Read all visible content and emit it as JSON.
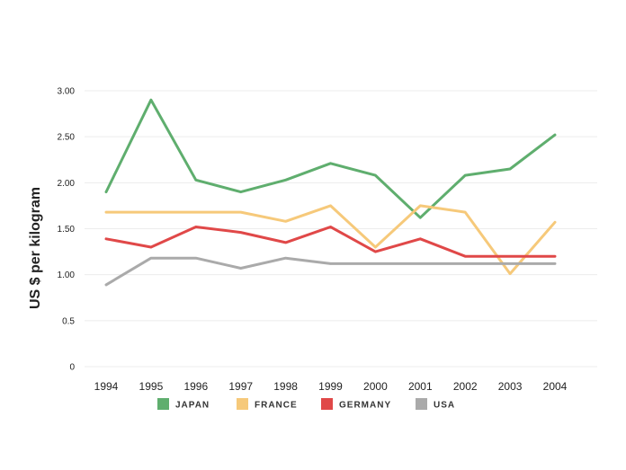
{
  "chart_data": {
    "type": "line",
    "title": "",
    "xlabel": "",
    "ylabel": "US $ per kilogram",
    "x": [
      "1994",
      "1995",
      "1996",
      "1997",
      "1998",
      "1999",
      "2000",
      "2001",
      "2002",
      "2003",
      "2004"
    ],
    "yticks": [
      "0",
      "0.5",
      "1.00",
      "1.50",
      "2.00",
      "2.50",
      "3.00"
    ],
    "ylim": [
      0,
      3
    ],
    "grid": true,
    "legend_position": "bottom",
    "series": [
      {
        "name": "JAPAN",
        "color": "#5fae6e",
        "values": [
          1.9,
          2.9,
          2.03,
          1.9,
          2.03,
          2.21,
          2.08,
          1.62,
          2.08,
          2.15,
          2.52
        ]
      },
      {
        "name": "FRANCE",
        "color": "#f6c97a",
        "values": [
          1.68,
          1.68,
          1.68,
          1.68,
          1.58,
          1.75,
          1.3,
          1.75,
          1.68,
          1.01,
          1.57
        ]
      },
      {
        "name": "GERMANY",
        "color": "#e04848",
        "values": [
          1.39,
          1.3,
          1.52,
          1.46,
          1.35,
          1.52,
          1.25,
          1.39,
          1.2,
          1.2,
          1.2
        ]
      },
      {
        "name": "USA",
        "color": "#aaaaaa",
        "values": [
          0.89,
          1.18,
          1.18,
          1.07,
          1.18,
          1.12,
          1.12,
          1.12,
          1.12,
          1.12,
          1.12
        ]
      }
    ]
  }
}
